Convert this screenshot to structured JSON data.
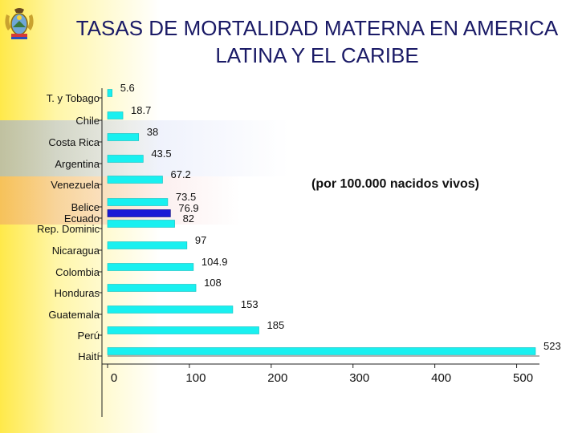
{
  "title": "TASAS DE MORTALIDAD MATERNA EN AMERICA LATINA Y EL CARIBE",
  "note": "(por 100.000 nacidos vivos)",
  "emblem": "ecuador-coat-of-arms",
  "colors": {
    "bar": "#19f0f0",
    "highlight": "#1a1ad6",
    "title": "#1a1a66"
  },
  "chart_data": {
    "type": "bar",
    "orientation": "horizontal",
    "title": "TASAS DE MORTALIDAD MATERNA EN AMERICA LATINA Y EL CARIBE",
    "xlim": [
      0,
      523
    ],
    "xticks": [
      "0",
      "100",
      "200",
      "300",
      "400",
      "500"
    ],
    "xtick_values": [
      0,
      100,
      200,
      300,
      400,
      500
    ],
    "categories": [
      "T. y Tobago",
      "Chile",
      "Costa Rica",
      "Argentina",
      "Venezuela",
      "Belice",
      "Ecuado",
      "Rep. Dominic",
      "Nicaragua",
      "Colombia",
      "Honduras",
      "Guatemala",
      "Perú",
      "Haití"
    ],
    "values": [
      5.6,
      18.7,
      38,
      43.5,
      67.2,
      73.5,
      76.9,
      82,
      97,
      104.9,
      108,
      153,
      185,
      523
    ],
    "value_labels": [
      "5.6",
      "18.7",
      "38",
      "43.5",
      "67.2",
      "73.5",
      "76.9",
      "82",
      "97",
      "104.9",
      "108",
      "153",
      "185",
      "523"
    ],
    "highlight": "Ecuado"
  }
}
